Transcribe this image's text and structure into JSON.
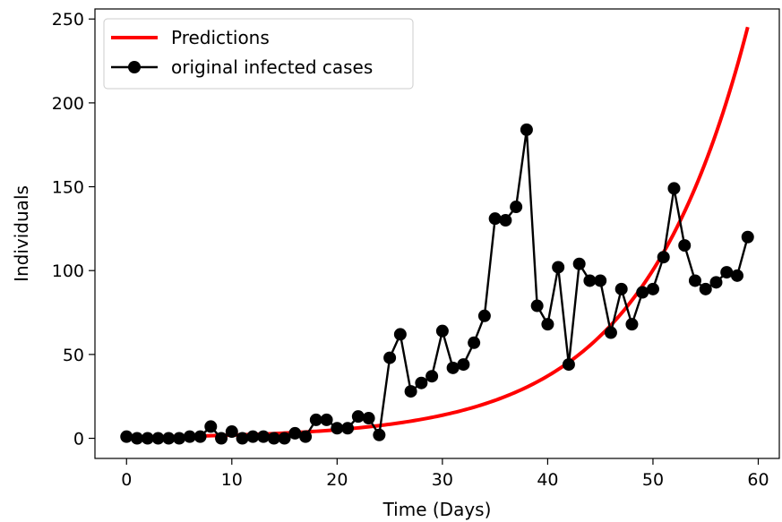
{
  "chart_data": {
    "type": "line",
    "xlabel": "Time (Days)",
    "ylabel": "Individuals",
    "xlim": [
      -3,
      62
    ],
    "ylim": [
      -12,
      256
    ],
    "x_ticks": [
      0,
      10,
      20,
      30,
      40,
      50,
      60
    ],
    "y_ticks": [
      0,
      50,
      100,
      150,
      200,
      250
    ],
    "x_tick_labels": [
      "0",
      "10",
      "20",
      "30",
      "40",
      "50",
      "60"
    ],
    "y_tick_labels": [
      "0",
      "50",
      "100",
      "150",
      "200",
      "250"
    ],
    "legend_position": "top-left",
    "grid": false,
    "series": [
      {
        "name": "Predictions",
        "color": "#ff0000",
        "style": "line",
        "model": "exponential",
        "a": 0.7,
        "b": 0.0993,
        "x_range": [
          0,
          59
        ]
      },
      {
        "name": "original infected cases",
        "color": "#000000",
        "style": "line-marker",
        "x": [
          0,
          1,
          2,
          3,
          4,
          5,
          6,
          7,
          8,
          9,
          10,
          11,
          12,
          13,
          14,
          15,
          16,
          17,
          18,
          19,
          20,
          21,
          22,
          23,
          24,
          25,
          26,
          27,
          28,
          29,
          30,
          31,
          32,
          33,
          34,
          35,
          36,
          37,
          38,
          39,
          40,
          41,
          42,
          43,
          44,
          45,
          46,
          47,
          48,
          49,
          50,
          51,
          52,
          53,
          54,
          55,
          56,
          57,
          58,
          59
        ],
        "values": [
          1,
          0,
          0,
          0,
          0,
          0,
          1,
          1,
          7,
          0,
          4,
          0,
          1,
          1,
          0,
          0,
          3,
          1,
          11,
          11,
          6,
          6,
          13,
          12,
          2,
          48,
          62,
          28,
          33,
          37,
          64,
          42,
          44,
          57,
          73,
          131,
          130,
          138,
          184,
          79,
          68,
          102,
          44,
          104,
          94,
          94,
          63,
          89,
          68,
          87,
          89,
          108,
          149,
          115,
          94,
          89,
          93,
          99,
          97,
          120
        ]
      }
    ]
  }
}
